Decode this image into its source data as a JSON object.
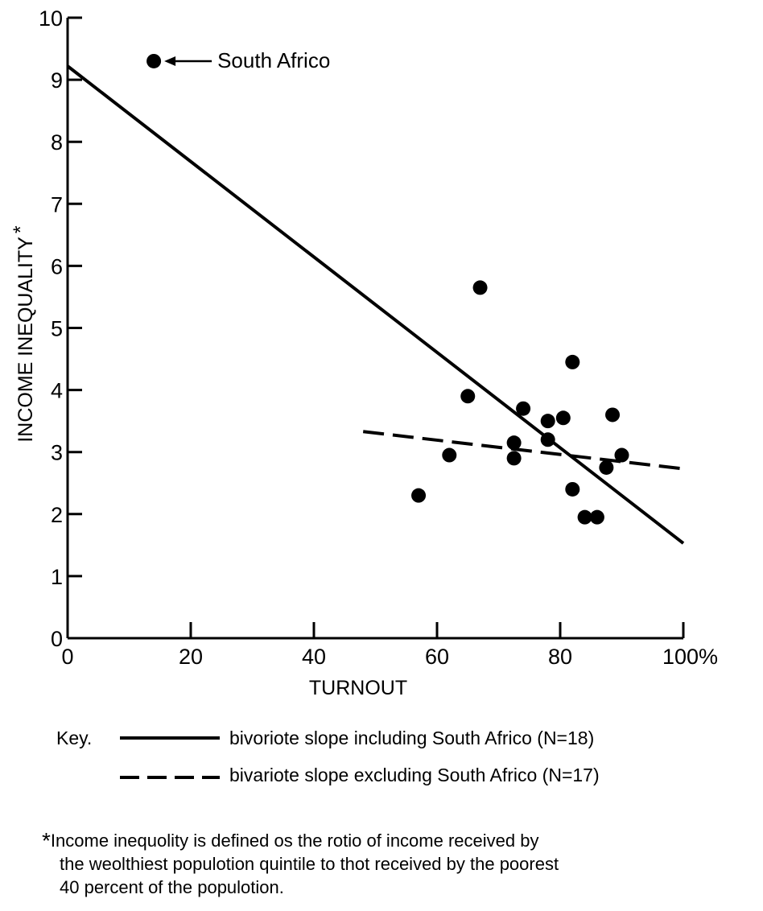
{
  "chart_data": {
    "type": "scatter",
    "xlabel": "TURNOUT",
    "ylabel": "INCOME INEQUALITY",
    "ylabel_mark": "*",
    "xlim": [
      0,
      100
    ],
    "ylim": [
      0,
      10
    ],
    "x_ticks": [
      0,
      20,
      40,
      60,
      80,
      100
    ],
    "x_tick_labels": [
      "0",
      "20",
      "40",
      "60",
      "80",
      "100%"
    ],
    "y_ticks": [
      0,
      1,
      2,
      3,
      4,
      5,
      6,
      7,
      8,
      9,
      10
    ],
    "y_tick_labels": [
      "0",
      "1",
      "2",
      "3",
      "4",
      "5",
      "6",
      "7",
      "8",
      "9",
      "10"
    ],
    "grid": false,
    "points": [
      {
        "x": 14,
        "y": 9.3,
        "label": "South Africo"
      },
      {
        "x": 57,
        "y": 2.3
      },
      {
        "x": 62,
        "y": 2.95
      },
      {
        "x": 65,
        "y": 3.9
      },
      {
        "x": 67,
        "y": 5.65
      },
      {
        "x": 72.5,
        "y": 3.15
      },
      {
        "x": 72.5,
        "y": 2.9
      },
      {
        "x": 74,
        "y": 3.7
      },
      {
        "x": 78,
        "y": 3.5
      },
      {
        "x": 78,
        "y": 3.2
      },
      {
        "x": 80.5,
        "y": 3.55
      },
      {
        "x": 82,
        "y": 4.45
      },
      {
        "x": 82,
        "y": 2.4
      },
      {
        "x": 84,
        "y": 1.95
      },
      {
        "x": 86,
        "y": 1.95
      },
      {
        "x": 87.5,
        "y": 2.75
      },
      {
        "x": 88.5,
        "y": 3.6
      },
      {
        "x": 90,
        "y": 2.95
      }
    ],
    "lines": [
      {
        "name": "bivoriote slope including South Africo (N=18)",
        "style": "solid",
        "x": [
          0,
          100
        ],
        "y": [
          9.22,
          1.53
        ]
      },
      {
        "name": "bivariote slope excluding South Africo (N=17)",
        "style": "dashed",
        "x": [
          48,
          100
        ],
        "y": [
          3.33,
          2.73
        ]
      }
    ],
    "annotation": "South Africo"
  },
  "legend": {
    "key_label": "Key.",
    "entries": [
      {
        "style": "solid",
        "text": "bivoriote slope including South Africo (N=18)"
      },
      {
        "style": "dashed",
        "text": "bivariote slope excluding South Africo (N=17)"
      }
    ]
  },
  "footnote": {
    "star": "*",
    "lines": [
      "Income inequolity is defined os the rotio of income received by",
      "the weolthiest populotion quintile to thot received by the poorest",
      "40 percent of the populotion."
    ]
  }
}
